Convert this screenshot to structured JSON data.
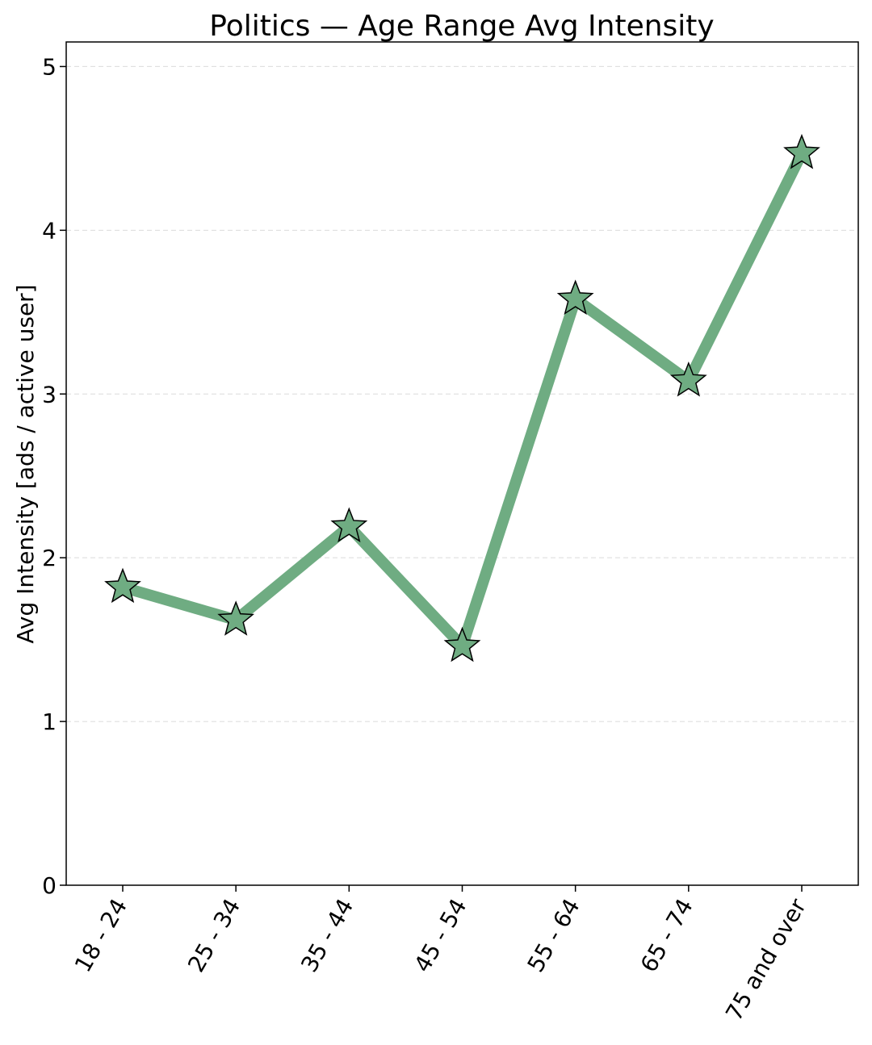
{
  "chart_data": {
    "type": "line",
    "title": "Politics — Age Range Avg Intensity",
    "xlabel": "",
    "ylabel": "Avg Intensity [ads / active user]",
    "categories": [
      "18 - 24",
      "25 - 34",
      "35 - 44",
      "45 - 54",
      "55 - 64",
      "65 - 74",
      "75 and over"
    ],
    "values": [
      1.82,
      1.62,
      2.19,
      1.46,
      3.58,
      3.08,
      4.47
    ],
    "ylim": [
      0,
      5.15
    ],
    "yticks": [
      0,
      1,
      2,
      3,
      4,
      5
    ],
    "grid": "y dashed",
    "marker": "star",
    "colors": {
      "line": "#6fac82",
      "marker_fill": "#6fac82",
      "marker_edge": "#000000"
    }
  }
}
